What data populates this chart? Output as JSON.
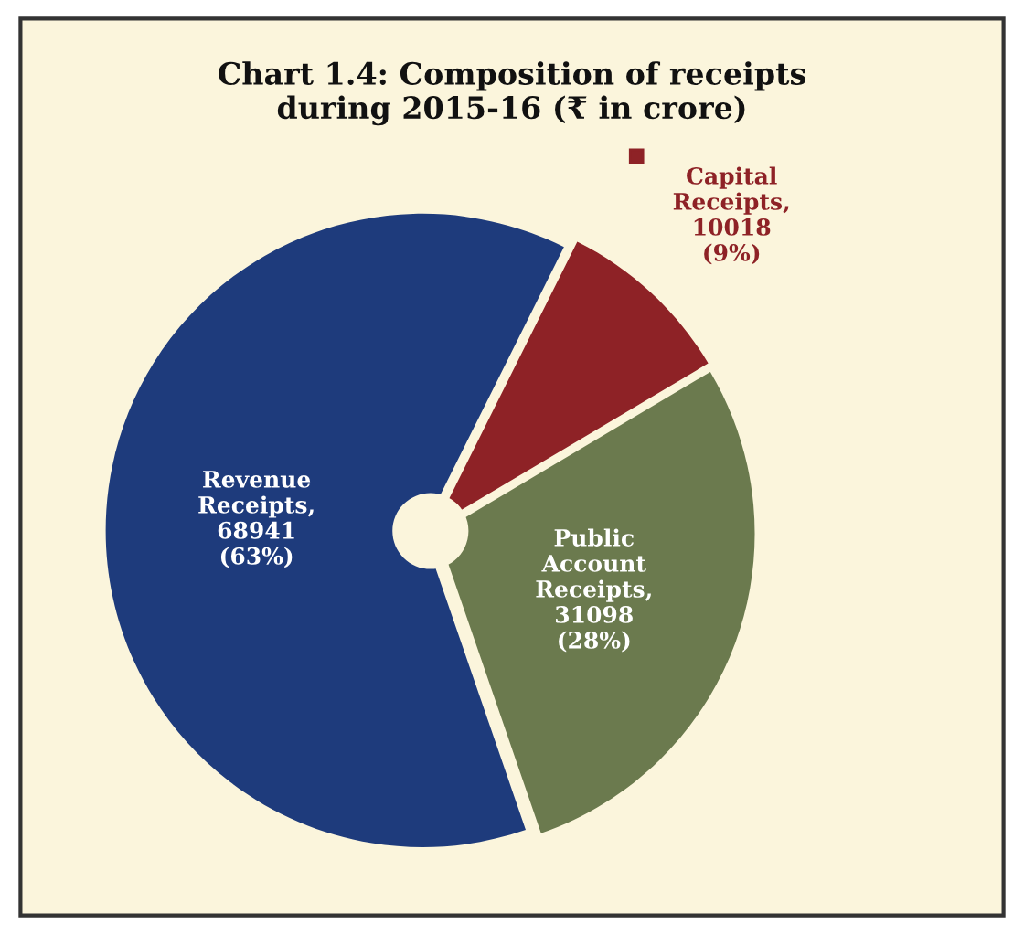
{
  "chart_data": {
    "type": "pie",
    "title": "Chart 1.4: Composition of receipts\nduring 2015-16 (₹ in crore)",
    "categories": [
      "Public Account Receipts",
      "Capital Receipts",
      "Revenue Receipts"
    ],
    "values": [
      31098,
      10018,
      68941
    ],
    "colors": [
      "#6b7a4e",
      "#8e2226",
      "#1e3b7c"
    ],
    "value_labels": [
      ",\n31098\n(28%)",
      ",\n10018\n(9%)",
      ",\n68941\n(63%)"
    ]
  }
}
